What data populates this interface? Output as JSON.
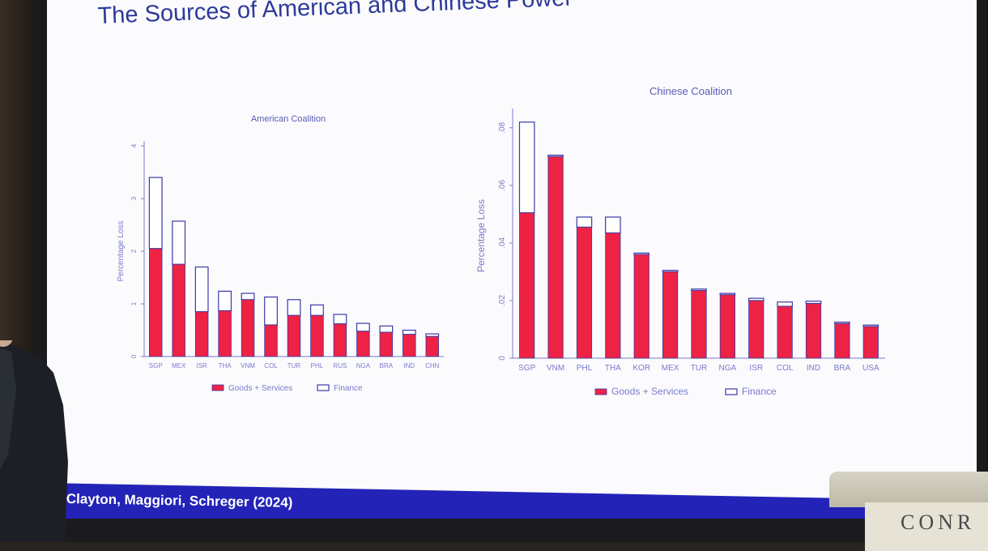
{
  "slide": {
    "title": "The Sources of American and Chinese Power",
    "footer": "Clayton, Maggiori, Schreger (2024)"
  },
  "podium": {
    "text": "CONR"
  },
  "colors": {
    "goods": "#ee2244",
    "finance_fill": "#ffffff",
    "finance_border": "#3a3aa8",
    "axis": "#7a7acc",
    "label": "#5a5ab8"
  },
  "chart_data": [
    {
      "type": "bar",
      "stacked": true,
      "title": "American Coalition",
      "ylabel": "Percentage Loss",
      "xlabel": "",
      "ylim": [
        0,
        4
      ],
      "yticks": [
        0,
        1,
        2,
        3,
        4
      ],
      "ytick_labels": [
        "0",
        "1",
        "2",
        "3",
        "4"
      ],
      "categories": [
        "SGP",
        "MEX",
        "ISR",
        "THA",
        "VNM",
        "COL",
        "TUR",
        "PHL",
        "RUS",
        "NGA",
        "BRA",
        "IND",
        "CHN"
      ],
      "series": [
        {
          "name": "Goods + Services",
          "values": [
            2.05,
            1.75,
            0.85,
            0.87,
            1.08,
            0.6,
            0.78,
            0.78,
            0.62,
            0.48,
            0.46,
            0.42,
            0.38
          ]
        },
        {
          "name": "Finance",
          "values": [
            1.35,
            0.82,
            0.85,
            0.37,
            0.12,
            0.53,
            0.3,
            0.2,
            0.18,
            0.15,
            0.12,
            0.08,
            0.05
          ]
        }
      ],
      "legend": "bottom"
    },
    {
      "type": "bar",
      "stacked": true,
      "title": "Chinese Coalition",
      "ylabel": "Percentage Loss",
      "xlabel": "",
      "ylim": [
        0,
        0.085
      ],
      "yticks": [
        0,
        0.02,
        0.04,
        0.06,
        0.08
      ],
      "ytick_labels": [
        "0",
        ".02",
        ".04",
        ".06",
        ".08"
      ],
      "categories": [
        "SGP",
        "VNM",
        "PHL",
        "THA",
        "KOR",
        "MEX",
        "TUR",
        "NGA",
        "ISR",
        "COL",
        "IND",
        "BRA",
        "USA"
      ],
      "series": [
        {
          "name": "Goods + Services",
          "values": [
            0.0505,
            0.07,
            0.0455,
            0.0435,
            0.036,
            0.03,
            0.0235,
            0.022,
            0.02,
            0.018,
            0.019,
            0.012,
            0.011
          ]
        },
        {
          "name": "Finance",
          "values": [
            0.0315,
            0.0005,
            0.0035,
            0.0055,
            0.0005,
            0.0005,
            0.0005,
            0.0005,
            0.0008,
            0.0015,
            0.0008,
            0.0005,
            0.0005
          ]
        }
      ],
      "legend": "bottom"
    }
  ]
}
